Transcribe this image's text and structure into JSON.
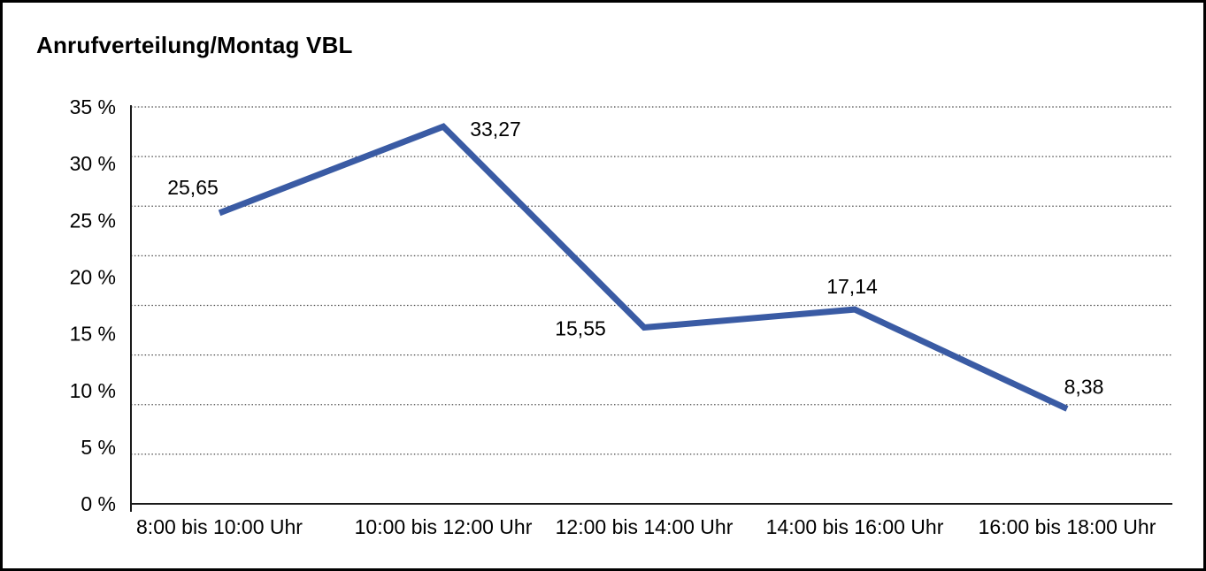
{
  "chart_data": {
    "type": "line",
    "title": "Anrufverteilung/Montag VBL",
    "categories": [
      "8:00 bis 10:00 Uhr",
      "10:00 bis 12:00 Uhr",
      "12:00 bis 14:00 Uhr",
      "14:00 bis 16:00 Uhr",
      "16:00 bis 18:00 Uhr"
    ],
    "values": [
      25.65,
      33.27,
      15.55,
      17.14,
      8.38
    ],
    "value_labels": [
      "25,65",
      "33,27",
      "15,55",
      "17,14",
      "8,38"
    ],
    "y_ticks": [
      "35 %",
      "30 %",
      "25 %",
      "20 %",
      "15 %",
      "10 %",
      "5 %",
      "0 %"
    ],
    "ylim": [
      0,
      35
    ],
    "xlabel": "",
    "ylabel": "",
    "grid": "horizontal-dotted",
    "gridline_count": 9,
    "legend": "none",
    "line_color": "#3a5ba4",
    "axis_color": "#1a1a1a",
    "grid_color": "#4a4a4a",
    "text_color": "#000000",
    "background": "#ffffff"
  }
}
